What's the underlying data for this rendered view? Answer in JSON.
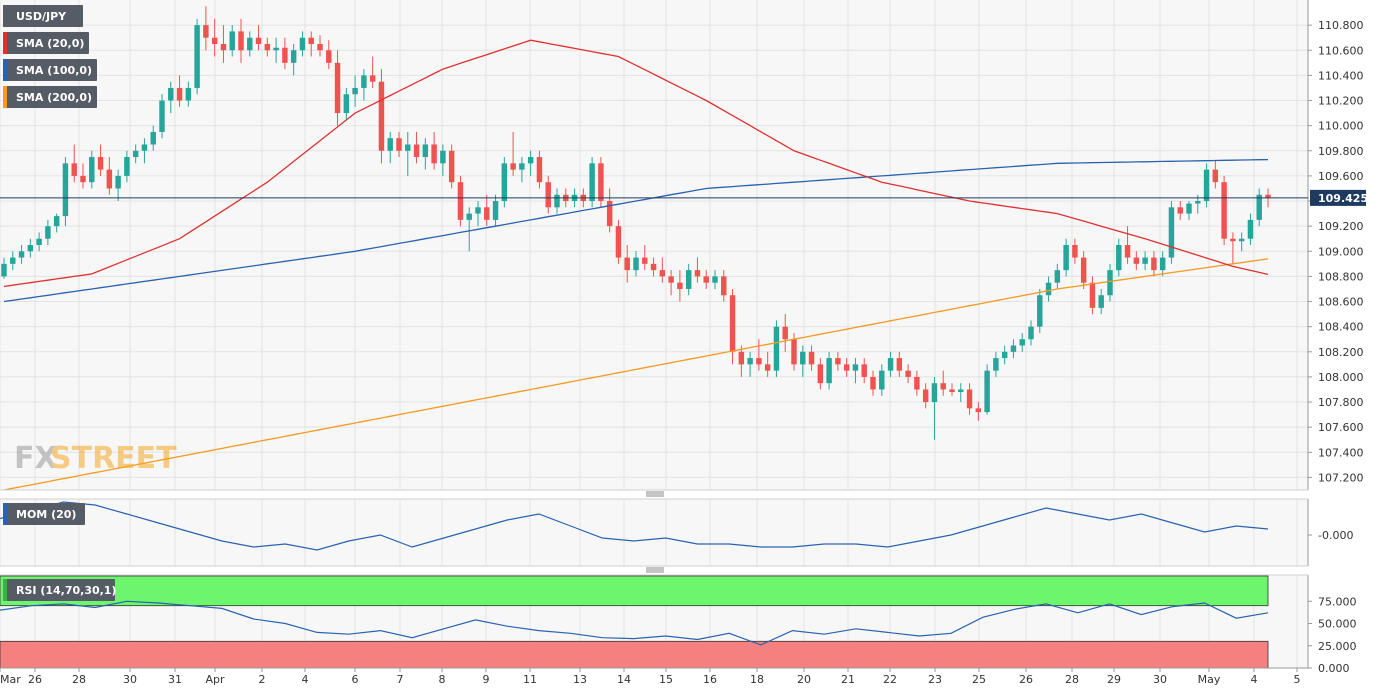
{
  "colors": {
    "bull": "#26A69A",
    "bear": "#EF5350",
    "sma20": "#E03030",
    "sma100": "#2A62B0",
    "sma200": "#F59A23",
    "mom": "#2A62B0",
    "rsi": "#2A62B0",
    "rsi_overbought_zone": "#6EF56E",
    "rsi_oversold_zone": "#F58080",
    "price_marker_bg": "#1E3A5F"
  },
  "legend": {
    "symbol": "USD/JPY",
    "sma20": "SMA (20,0)",
    "sma100": "SMA (100,0)",
    "sma200": "SMA (200,0)"
  },
  "watermark": {
    "fx": "FX",
    "street": "STREET",
    "icon": "fxstreet-logo-icon"
  },
  "chart_data": [
    {
      "type": "candlestick",
      "series_name": "USD/JPY",
      "timeframe": "H4",
      "ylim": [
        107.1,
        111.0
      ],
      "yticks": [
        "110.800",
        "110.600",
        "110.400",
        "110.200",
        "110.000",
        "109.800",
        "109.600",
        "109.400",
        "109.200",
        "109.000",
        "108.800",
        "108.600",
        "108.400",
        "108.200",
        "108.000",
        "107.800",
        "107.600",
        "107.400",
        "107.200"
      ],
      "current_price": "109.425",
      "x_tick_labels": [
        "Mar",
        "26",
        "28",
        "30",
        "31",
        "Apr",
        "2",
        "4",
        "6",
        "7",
        "8",
        "9",
        "11",
        "13",
        "14",
        "15",
        "16",
        "18",
        "20",
        "21",
        "22",
        "23",
        "25",
        "26",
        "28",
        "29",
        "30",
        "May",
        "4",
        "5"
      ],
      "candles": [
        [
          108.8,
          108.95,
          108.78,
          108.9
        ],
        [
          108.9,
          109.0,
          108.85,
          108.95
        ],
        [
          108.95,
          109.05,
          108.9,
          109.0
        ],
        [
          109.0,
          109.1,
          108.95,
          109.05
        ],
        [
          109.05,
          109.15,
          109.0,
          109.1
        ],
        [
          109.1,
          109.25,
          109.05,
          109.2
        ],
        [
          109.2,
          109.3,
          109.15,
          109.28
        ],
        [
          109.28,
          109.75,
          109.2,
          109.7
        ],
        [
          109.7,
          109.85,
          109.55,
          109.6
        ],
        [
          109.6,
          109.7,
          109.5,
          109.55
        ],
        [
          109.55,
          109.8,
          109.5,
          109.75
        ],
        [
          109.75,
          109.85,
          109.6,
          109.65
        ],
        [
          109.65,
          109.75,
          109.45,
          109.5
        ],
        [
          109.5,
          109.65,
          109.4,
          109.6
        ],
        [
          109.6,
          109.8,
          109.55,
          109.75
        ],
        [
          109.75,
          109.85,
          109.7,
          109.8
        ],
        [
          109.8,
          109.9,
          109.7,
          109.85
        ],
        [
          109.85,
          110.0,
          109.8,
          109.95
        ],
        [
          109.95,
          110.25,
          109.9,
          110.2
        ],
        [
          110.2,
          110.35,
          110.1,
          110.3
        ],
        [
          110.3,
          110.4,
          110.15,
          110.2
        ],
        [
          110.2,
          110.35,
          110.15,
          110.3
        ],
        [
          110.3,
          110.85,
          110.25,
          110.8
        ],
        [
          110.8,
          110.95,
          110.6,
          110.7
        ],
        [
          110.7,
          110.85,
          110.55,
          110.65
        ],
        [
          110.65,
          110.8,
          110.5,
          110.6
        ],
        [
          110.6,
          110.8,
          110.55,
          110.75
        ],
        [
          110.75,
          110.85,
          110.5,
          110.6
        ],
        [
          110.6,
          110.75,
          110.55,
          110.7
        ],
        [
          110.7,
          110.8,
          110.6,
          110.65
        ],
        [
          110.65,
          110.7,
          110.55,
          110.6
        ],
        [
          110.6,
          110.7,
          110.5,
          110.62
        ],
        [
          110.62,
          110.7,
          110.45,
          110.5
        ],
        [
          110.5,
          110.65,
          110.4,
          110.6
        ],
        [
          110.6,
          110.75,
          110.55,
          110.7
        ],
        [
          110.7,
          110.75,
          110.55,
          110.65
        ],
        [
          110.65,
          110.72,
          110.55,
          110.6
        ],
        [
          110.6,
          110.68,
          110.45,
          110.5
        ],
        [
          110.5,
          110.6,
          110.0,
          110.1
        ],
        [
          110.1,
          110.3,
          110.05,
          110.25
        ],
        [
          110.25,
          110.4,
          110.15,
          110.3
        ],
        [
          110.3,
          110.45,
          110.2,
          110.4
        ],
        [
          110.4,
          110.55,
          110.3,
          110.35
        ],
        [
          110.35,
          110.45,
          109.7,
          109.8
        ],
        [
          109.8,
          109.95,
          109.7,
          109.9
        ],
        [
          109.9,
          109.95,
          109.75,
          109.8
        ],
        [
          109.8,
          109.95,
          109.6,
          109.85
        ],
        [
          109.85,
          109.95,
          109.7,
          109.75
        ],
        [
          109.75,
          109.9,
          109.65,
          109.85
        ],
        [
          109.85,
          109.95,
          109.65,
          109.7
        ],
        [
          109.7,
          109.85,
          109.6,
          109.8
        ],
        [
          109.8,
          109.85,
          109.5,
          109.55
        ],
        [
          109.55,
          109.6,
          109.2,
          109.25
        ],
        [
          109.25,
          109.35,
          109.0,
          109.3
        ],
        [
          109.3,
          109.4,
          109.2,
          109.35
        ],
        [
          109.35,
          109.45,
          109.2,
          109.25
        ],
        [
          109.25,
          109.45,
          109.2,
          109.4
        ],
        [
          109.4,
          109.75,
          109.35,
          109.7
        ],
        [
          109.7,
          109.95,
          109.6,
          109.65
        ],
        [
          109.65,
          109.75,
          109.55,
          109.7
        ],
        [
          109.7,
          109.8,
          109.6,
          109.75
        ],
        [
          109.75,
          109.8,
          109.5,
          109.55
        ],
        [
          109.55,
          109.6,
          109.3,
          109.35
        ],
        [
          109.35,
          109.5,
          109.3,
          109.45
        ],
        [
          109.45,
          109.5,
          109.35,
          109.4
        ],
        [
          109.4,
          109.5,
          109.35,
          109.45
        ],
        [
          109.45,
          109.5,
          109.35,
          109.4
        ],
        [
          109.4,
          109.75,
          109.35,
          109.7
        ],
        [
          109.7,
          109.75,
          109.35,
          109.4
        ],
        [
          109.4,
          109.5,
          109.15,
          109.2
        ],
        [
          109.2,
          109.25,
          108.9,
          108.95
        ],
        [
          108.95,
          109.05,
          108.75,
          108.85
        ],
        [
          108.85,
          109.0,
          108.8,
          108.95
        ],
        [
          108.95,
          109.05,
          108.85,
          108.9
        ],
        [
          108.9,
          108.95,
          108.8,
          108.85
        ],
        [
          108.85,
          108.95,
          108.75,
          108.8
        ],
        [
          108.8,
          108.85,
          108.65,
          108.75
        ],
        [
          108.75,
          108.85,
          108.6,
          108.7
        ],
        [
          108.7,
          108.9,
          108.65,
          108.85
        ],
        [
          108.85,
          108.95,
          108.75,
          108.8
        ],
        [
          108.8,
          108.85,
          108.7,
          108.75
        ],
        [
          108.75,
          108.85,
          108.7,
          108.8
        ],
        [
          108.8,
          108.85,
          108.6,
          108.65
        ],
        [
          108.65,
          108.7,
          108.1,
          108.2
        ],
        [
          108.2,
          108.25,
          108.0,
          108.1
        ],
        [
          108.1,
          108.2,
          108.0,
          108.15
        ],
        [
          108.15,
          108.3,
          108.05,
          108.1
        ],
        [
          108.1,
          108.2,
          108.0,
          108.05
        ],
        [
          108.05,
          108.45,
          108.0,
          108.4
        ],
        [
          108.4,
          108.5,
          108.2,
          108.3
        ],
        [
          108.3,
          108.35,
          108.05,
          108.1
        ],
        [
          108.1,
          108.25,
          108.0,
          108.2
        ],
        [
          108.2,
          108.25,
          108.05,
          108.1
        ],
        [
          108.1,
          108.15,
          107.9,
          107.95
        ],
        [
          107.95,
          108.2,
          107.9,
          108.15
        ],
        [
          108.15,
          108.2,
          108.05,
          108.1
        ],
        [
          108.1,
          108.15,
          108.0,
          108.05
        ],
        [
          108.05,
          108.15,
          107.95,
          108.1
        ],
        [
          108.1,
          108.15,
          107.95,
          108.0
        ],
        [
          108.0,
          108.05,
          107.85,
          107.9
        ],
        [
          107.9,
          108.1,
          107.85,
          108.05
        ],
        [
          108.05,
          108.2,
          108.0,
          108.15
        ],
        [
          108.15,
          108.2,
          108.0,
          108.05
        ],
        [
          108.05,
          108.1,
          107.95,
          108.0
        ],
        [
          108.0,
          108.05,
          107.85,
          107.9
        ],
        [
          107.9,
          107.95,
          107.75,
          107.8
        ],
        [
          107.8,
          108.0,
          107.5,
          107.95
        ],
        [
          107.95,
          108.05,
          107.85,
          107.9
        ],
        [
          107.9,
          107.95,
          107.85,
          107.88
        ],
        [
          107.88,
          107.95,
          107.8,
          107.9
        ],
        [
          107.9,
          107.95,
          107.7,
          107.75
        ],
        [
          107.75,
          107.8,
          107.65,
          107.72
        ],
        [
          107.72,
          108.1,
          107.7,
          108.05
        ],
        [
          108.05,
          108.2,
          108.0,
          108.15
        ],
        [
          108.15,
          108.25,
          108.1,
          108.2
        ],
        [
          108.2,
          108.3,
          108.15,
          108.25
        ],
        [
          108.25,
          108.35,
          108.2,
          108.3
        ],
        [
          108.3,
          108.45,
          108.25,
          108.4
        ],
        [
          108.4,
          108.7,
          108.35,
          108.65
        ],
        [
          108.65,
          108.8,
          108.6,
          108.75
        ],
        [
          108.75,
          108.9,
          108.7,
          108.85
        ],
        [
          108.85,
          109.1,
          108.8,
          109.05
        ],
        [
          109.05,
          109.1,
          108.9,
          108.95
        ],
        [
          108.95,
          109.0,
          108.7,
          108.75
        ],
        [
          108.75,
          108.8,
          108.5,
          108.55
        ],
        [
          108.55,
          108.7,
          108.5,
          108.65
        ],
        [
          108.65,
          108.9,
          108.6,
          108.85
        ],
        [
          108.85,
          109.1,
          108.8,
          109.05
        ],
        [
          109.05,
          109.2,
          108.9,
          108.95
        ],
        [
          108.95,
          109.0,
          108.85,
          108.9
        ],
        [
          108.9,
          109.0,
          108.85,
          108.95
        ],
        [
          108.95,
          109.0,
          108.8,
          108.85
        ],
        [
          108.85,
          109.0,
          108.8,
          108.95
        ],
        [
          108.95,
          109.4,
          108.9,
          109.35
        ],
        [
          109.35,
          109.4,
          109.25,
          109.3
        ],
        [
          109.3,
          109.4,
          109.25,
          109.38
        ],
        [
          109.38,
          109.45,
          109.3,
          109.4
        ],
        [
          109.4,
          109.7,
          109.35,
          109.65
        ],
        [
          109.65,
          109.72,
          109.5,
          109.55
        ],
        [
          109.55,
          109.6,
          109.05,
          109.1
        ],
        [
          109.1,
          109.15,
          108.9,
          109.08
        ],
        [
          109.08,
          109.15,
          109.0,
          109.1
        ],
        [
          109.1,
          109.3,
          109.05,
          109.25
        ],
        [
          109.25,
          109.5,
          109.2,
          109.45
        ],
        [
          109.45,
          109.5,
          109.35,
          109.425
        ]
      ],
      "sma20_approx": [
        [
          0,
          108.72
        ],
        [
          10,
          108.82
        ],
        [
          20,
          109.1
        ],
        [
          30,
          109.55
        ],
        [
          40,
          110.1
        ],
        [
          50,
          110.45
        ],
        [
          60,
          110.68
        ],
        [
          70,
          110.55
        ],
        [
          80,
          110.2
        ],
        [
          90,
          109.8
        ],
        [
          100,
          109.55
        ],
        [
          110,
          109.4
        ],
        [
          120,
          109.3
        ],
        [
          130,
          109.1
        ],
        [
          140,
          108.88
        ],
        [
          150,
          108.72
        ],
        [
          160,
          108.45
        ],
        [
          170,
          108.2
        ],
        [
          180,
          108.05
        ],
        [
          190,
          107.96
        ],
        [
          200,
          108.05
        ],
        [
          210,
          108.3
        ],
        [
          220,
          108.6
        ],
        [
          230,
          108.95
        ],
        [
          240,
          109.18
        ]
      ],
      "sma100_approx": [
        [
          0,
          108.6
        ],
        [
          40,
          109.0
        ],
        [
          80,
          109.5
        ],
        [
          120,
          109.7
        ],
        [
          160,
          109.75
        ],
        [
          190,
          109.45
        ],
        [
          210,
          108.9
        ],
        [
          240,
          108.65
        ]
      ],
      "sma200_approx": [
        [
          0,
          107.1
        ],
        [
          60,
          107.9
        ],
        [
          120,
          108.7
        ],
        [
          170,
          109.2
        ],
        [
          210,
          109.15
        ],
        [
          240,
          109.15
        ]
      ]
    },
    {
      "type": "line",
      "indicator": "MOM (20)",
      "label": "MOM (20)",
      "ytick": "-0.000",
      "values": [
        0.55,
        0.8,
        1.1,
        1.0,
        0.7,
        0.4,
        0.1,
        -0.2,
        -0.4,
        -0.3,
        -0.5,
        -0.2,
        0.0,
        -0.4,
        -0.1,
        0.2,
        0.5,
        0.7,
        0.3,
        -0.1,
        -0.2,
        -0.1,
        -0.3,
        -0.3,
        -0.4,
        -0.4,
        -0.3,
        -0.3,
        -0.4,
        -0.2,
        0.0,
        0.3,
        0.6,
        0.9,
        0.7,
        0.5,
        0.7,
        0.4,
        0.1,
        0.3,
        0.2
      ]
    },
    {
      "type": "line",
      "indicator": "RSI (14,70,30,1)",
      "label": "RSI (14,70,30,1)",
      "ylim": [
        0,
        100
      ],
      "yticks": [
        "75.000",
        "50.000",
        "25.000",
        "0.000"
      ],
      "overbought": 70,
      "oversold": 30,
      "values": [
        65,
        70,
        72,
        68,
        75,
        73,
        70,
        67,
        55,
        50,
        40,
        38,
        42,
        34,
        44,
        54,
        47,
        42,
        39,
        34,
        33,
        36,
        32,
        39,
        26,
        42,
        38,
        44,
        40,
        36,
        39,
        57,
        66,
        72,
        62,
        72,
        60,
        69,
        73,
        56,
        62
      ]
    }
  ]
}
